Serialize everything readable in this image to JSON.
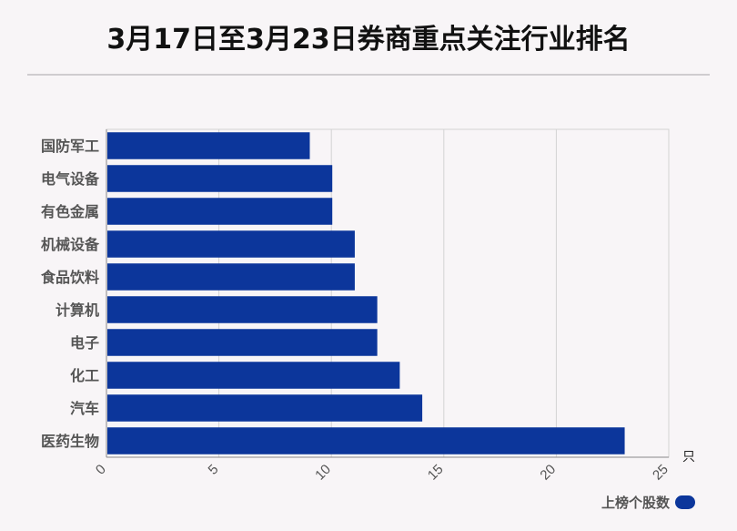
{
  "title": "3月17日至3月23日券商重点关注行业排名",
  "colors": {
    "bar": "#0c369b",
    "grid": "#d3d3d3",
    "axis": "#888888"
  },
  "chart_data": {
    "type": "bar",
    "orientation": "horizontal",
    "categories": [
      "国防军工",
      "电气设备",
      "有色金属",
      "机械设备",
      "食品饮料",
      "计算机",
      "电子",
      "化工",
      "汽车",
      "医药生物"
    ],
    "series": [
      {
        "name": "上榜个股数",
        "values": [
          9,
          10,
          10,
          11,
          11,
          12,
          12,
          13,
          14,
          23
        ]
      }
    ],
    "xlim": [
      0,
      25
    ],
    "xticks": [
      "0",
      "5",
      "10",
      "15",
      "20",
      "25"
    ],
    "xunit": "只",
    "grid": true,
    "legend_position": "bottom-right"
  }
}
